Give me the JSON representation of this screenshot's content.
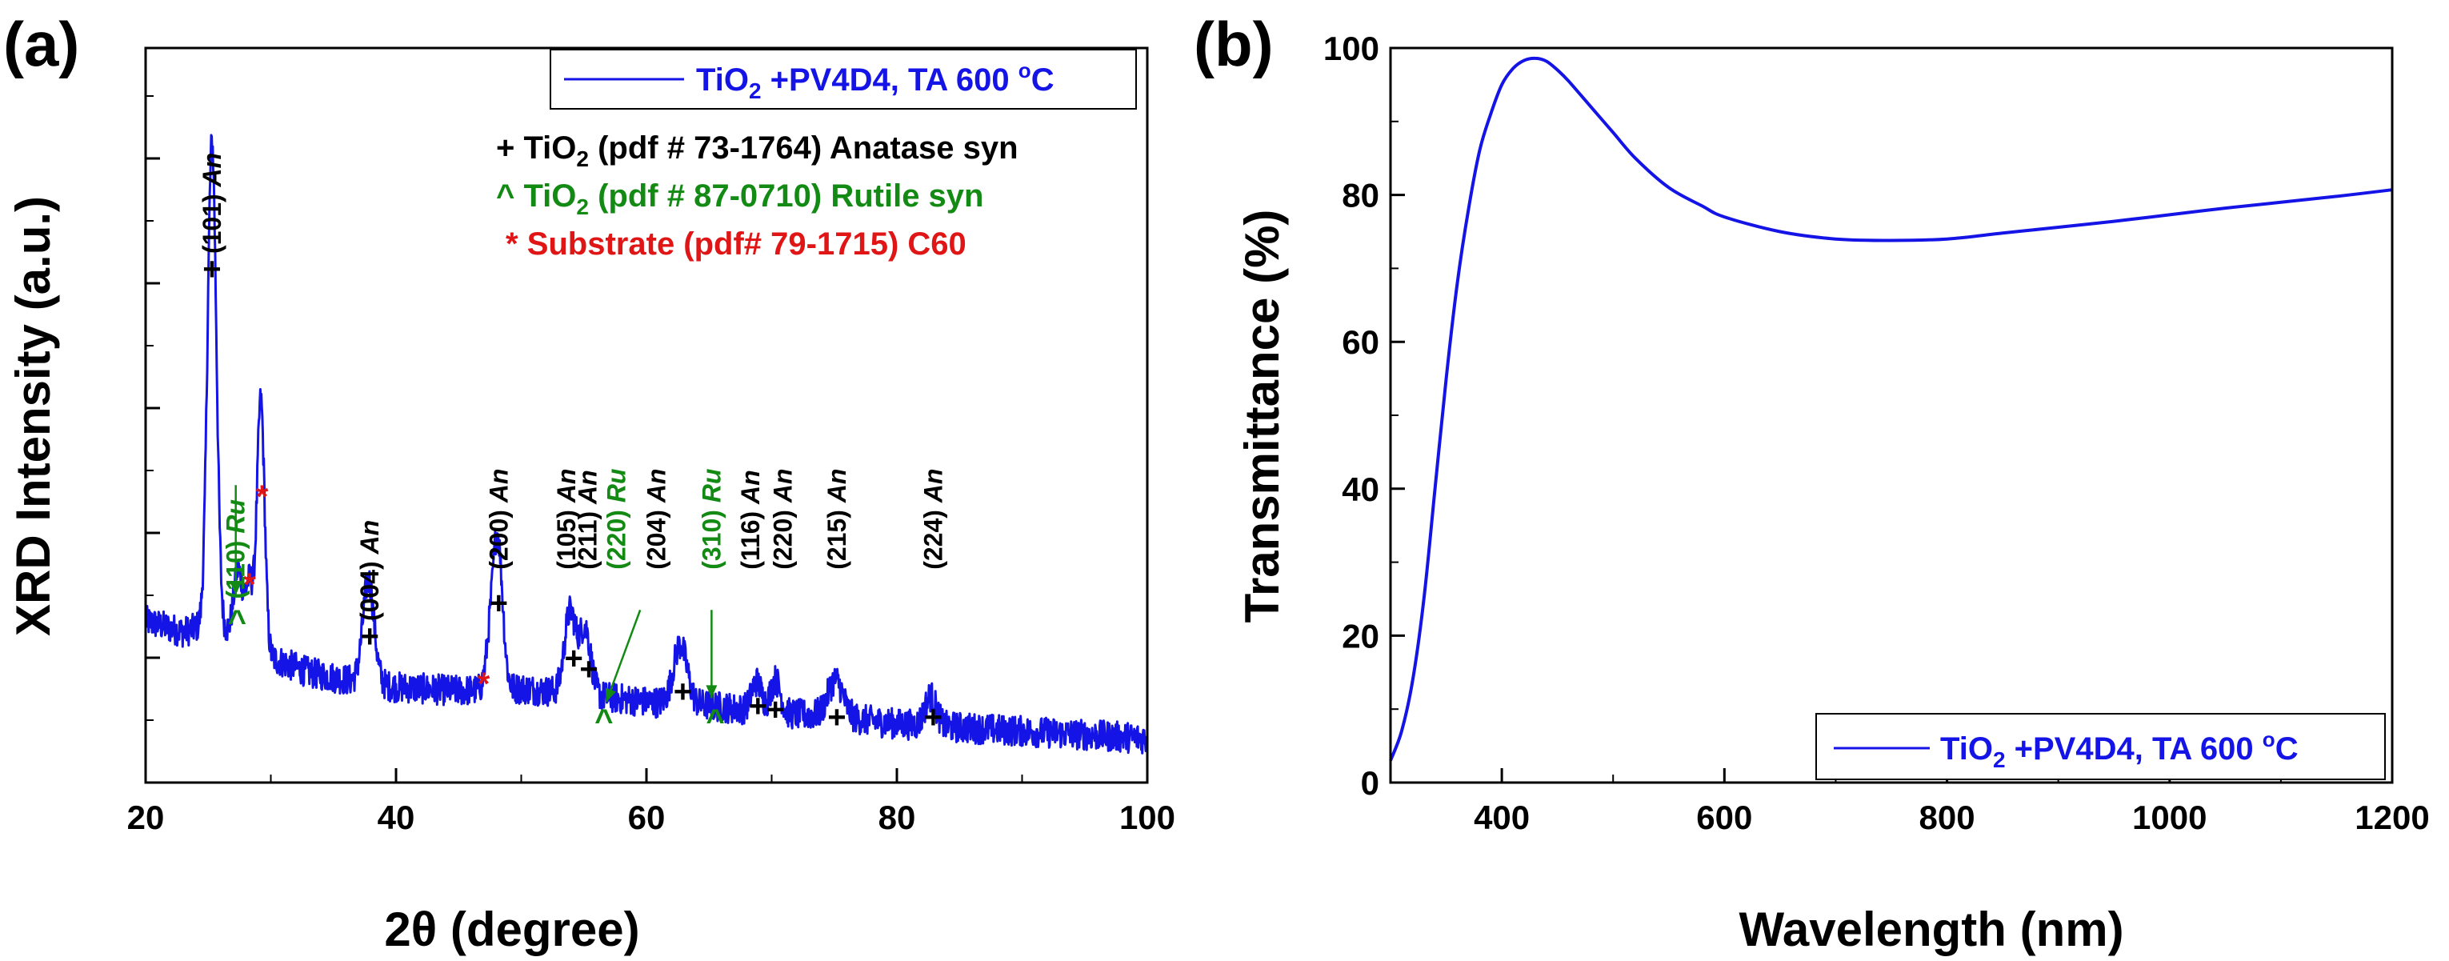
{
  "chart_data": [
    {
      "type": "line",
      "panel": "(a)",
      "xlabel": "2θ (degree)",
      "ylabel": "XRD Intensity (a.u.)",
      "xlim": [
        20,
        100
      ],
      "ylim": [
        0,
        100
      ],
      "xticks": [
        "20",
        "40",
        "60",
        "80",
        "100"
      ],
      "y_tick_labels": "none",
      "line_color": "#1414e6",
      "legend": {
        "series_prefix": "TiO",
        "series_sub": "2",
        "series_mid": " +PV4D4, TA 600 ",
        "series_sup": "o",
        "series_suffix": "C"
      },
      "phase_keys": [
        {
          "symbol": "+",
          "pre": " TiO",
          "sub": "2",
          "post": " (pdf # 73-1764) Anatase syn",
          "color": "#000000"
        },
        {
          "symbol": "^",
          "pre": " TiO",
          "sub": "2",
          "post": " (pdf # 87-0710) Rutile syn",
          "color": "#138a13"
        },
        {
          "symbol": "*",
          "pre": " Substrate (pdf# 79-1715) C60",
          "sub": "",
          "post": "",
          "color": "#e01515"
        }
      ],
      "baseline": [
        [
          20,
          22
        ],
        [
          23,
          20.5
        ],
        [
          25,
          21.5
        ],
        [
          28,
          19.5
        ],
        [
          30,
          17
        ],
        [
          33,
          15
        ],
        [
          36,
          14
        ],
        [
          40,
          13
        ],
        [
          45,
          12.5
        ],
        [
          50,
          12.8
        ],
        [
          55,
          12
        ],
        [
          60,
          11
        ],
        [
          65,
          10.5
        ],
        [
          70,
          9.5
        ],
        [
          75,
          9
        ],
        [
          80,
          8
        ],
        [
          85,
          7.5
        ],
        [
          90,
          7
        ],
        [
          95,
          6.5
        ],
        [
          100,
          6
        ]
      ],
      "peaks": [
        {
          "pos": 25.3,
          "height": 66,
          "width": 0.35
        },
        {
          "pos": 27.4,
          "height": 9,
          "width": 0.35
        },
        {
          "pos": 28.3,
          "height": 8,
          "width": 0.3
        },
        {
          "pos": 29.2,
          "height": 34,
          "width": 0.3
        },
        {
          "pos": 37.8,
          "height": 14,
          "width": 0.45
        },
        {
          "pos": 47.4,
          "height": 4,
          "width": 0.3
        },
        {
          "pos": 48.1,
          "height": 21,
          "width": 0.4
        },
        {
          "pos": 53.9,
          "height": 11,
          "width": 0.45
        },
        {
          "pos": 55.1,
          "height": 9,
          "width": 0.45
        },
        {
          "pos": 62.7,
          "height": 8,
          "width": 0.55
        },
        {
          "pos": 68.8,
          "height": 4,
          "width": 0.4
        },
        {
          "pos": 70.3,
          "height": 4.5,
          "width": 0.4
        },
        {
          "pos": 75.1,
          "height": 5,
          "width": 0.6
        },
        {
          "pos": 82.7,
          "height": 4,
          "width": 0.45
        }
      ],
      "peak_annotations": [
        {
          "hkl": "(101)",
          "phase": "An",
          "color": "#000000",
          "x": 25.3,
          "y": 72,
          "ly": 86
        },
        {
          "hkl": "(110)",
          "phase": "Ru",
          "color": "#138a13",
          "x": 27.2,
          "y": 25,
          "ly": 63
        },
        {
          "hkl": "(004)",
          "phase": "An",
          "color": "#000000",
          "x": 37.9,
          "y": 22,
          "ly": 33
        },
        {
          "hkl": "(200)",
          "phase": "An",
          "color": "#000000",
          "x": 48.2,
          "y": 29,
          "ly": 42
        },
        {
          "hkl": "(105)",
          "phase": "An",
          "color": "#000000",
          "x": 53.6,
          "y": 29,
          "ly": 38
        },
        {
          "hkl": "(211)",
          "phase": "An",
          "color": "#000000",
          "x": 55.3,
          "y": 29,
          "ly": 38
        },
        {
          "hkl": "(220)",
          "phase": "Ru",
          "color": "#138a13",
          "x": 57.6,
          "y": 29,
          "ly": 38
        },
        {
          "hkl": "(204)",
          "phase": "An",
          "color": "#000000",
          "x": 60.8,
          "y": 29,
          "ly": 38
        },
        {
          "hkl": "(310)",
          "phase": "Ru",
          "color": "#138a13",
          "x": 65.2,
          "y": 29,
          "ly": 38
        },
        {
          "hkl": "(116)",
          "phase": "An",
          "color": "#000000",
          "x": 68.3,
          "y": 29,
          "ly": 38
        },
        {
          "hkl": "(220)",
          "phase": "An",
          "color": "#000000",
          "x": 70.9,
          "y": 29,
          "ly": 38
        },
        {
          "hkl": "(215)",
          "phase": "An",
          "color": "#000000",
          "x": 75.2,
          "y": 29,
          "ly": 38
        },
        {
          "hkl": "(224)",
          "phase": "An",
          "color": "#000000",
          "x": 82.9,
          "y": 29,
          "ly": 38
        }
      ],
      "markers": [
        {
          "symbol": "+",
          "x": 25.3,
          "y": 70,
          "color": "#000000"
        },
        {
          "symbol": "^",
          "x": 27.3,
          "y": 22,
          "color": "#138a13"
        },
        {
          "symbol": "*",
          "x": 29.3,
          "y": 39,
          "color": "#e01515"
        },
        {
          "symbol": "*",
          "x": 28.3,
          "y": 27,
          "color": "#e01515"
        },
        {
          "symbol": "+",
          "x": 37.9,
          "y": 20,
          "color": "#000000"
        },
        {
          "symbol": "*",
          "x": 47.0,
          "y": 13.5,
          "color": "#e01515"
        },
        {
          "symbol": "+",
          "x": 48.2,
          "y": 24.5,
          "color": "#000000"
        },
        {
          "symbol": "+",
          "x": 54.2,
          "y": 17,
          "color": "#000000"
        },
        {
          "symbol": "+",
          "x": 55.4,
          "y": 15.5,
          "color": "#000000"
        },
        {
          "symbol": "^",
          "x": 56.6,
          "y": 8.5,
          "color": "#138a13"
        },
        {
          "symbol": "+",
          "x": 62.9,
          "y": 12.5,
          "color": "#000000"
        },
        {
          "symbol": "^",
          "x": 65.5,
          "y": 8.5,
          "color": "#138a13"
        },
        {
          "symbol": "+",
          "x": 68.9,
          "y": 10.5,
          "color": "#000000"
        },
        {
          "symbol": "+",
          "x": 70.3,
          "y": 10,
          "color": "#000000"
        },
        {
          "symbol": "+",
          "x": 75.2,
          "y": 9,
          "color": "#000000"
        },
        {
          "symbol": "+",
          "x": 82.9,
          "y": 9,
          "color": "#000000"
        }
      ],
      "arrows": [
        {
          "from": [
            27.2,
            40.5
          ],
          "to": [
            27.2,
            25.5
          ],
          "color": "#138a13"
        },
        {
          "from": [
            59.5,
            23.5
          ],
          "to": [
            56.8,
            11.0
          ],
          "color": "#138a13"
        },
        {
          "from": [
            65.2,
            23.5
          ],
          "to": [
            65.2,
            11.5
          ],
          "color": "#138a13"
        }
      ]
    },
    {
      "type": "line",
      "panel": "(b)",
      "xlabel": "Wavelength (nm)",
      "ylabel": "Transmittance (%)",
      "xlim": [
        300,
        1200
      ],
      "ylim": [
        0,
        100
      ],
      "xticks": [
        "400",
        "600",
        "800",
        "1000",
        "1200"
      ],
      "yticks": [
        "0",
        "20",
        "40",
        "60",
        "80",
        "100"
      ],
      "line_color": "#1414e6",
      "legend": {
        "series_prefix": "TiO",
        "series_sub": "2",
        "series_mid": " +PV4D4, TA 600 ",
        "series_sup": "o",
        "series_suffix": "C"
      },
      "x": [
        300,
        310,
        320,
        330,
        340,
        350,
        360,
        370,
        380,
        390,
        400,
        410,
        420,
        430,
        440,
        450,
        460,
        480,
        500,
        520,
        550,
        580,
        600,
        650,
        700,
        750,
        800,
        850,
        900,
        950,
        1000,
        1050,
        1100,
        1150,
        1200
      ],
      "y": [
        3,
        7,
        14,
        25,
        40,
        55,
        68,
        78,
        86,
        91,
        95,
        97.2,
        98.3,
        98.6,
        98.2,
        97,
        95.5,
        92,
        88.5,
        85,
        81,
        78.5,
        77,
        75,
        74,
        73.8,
        74,
        74.8,
        75.6,
        76.4,
        77.3,
        78.2,
        79,
        79.8,
        80.7
      ]
    }
  ]
}
